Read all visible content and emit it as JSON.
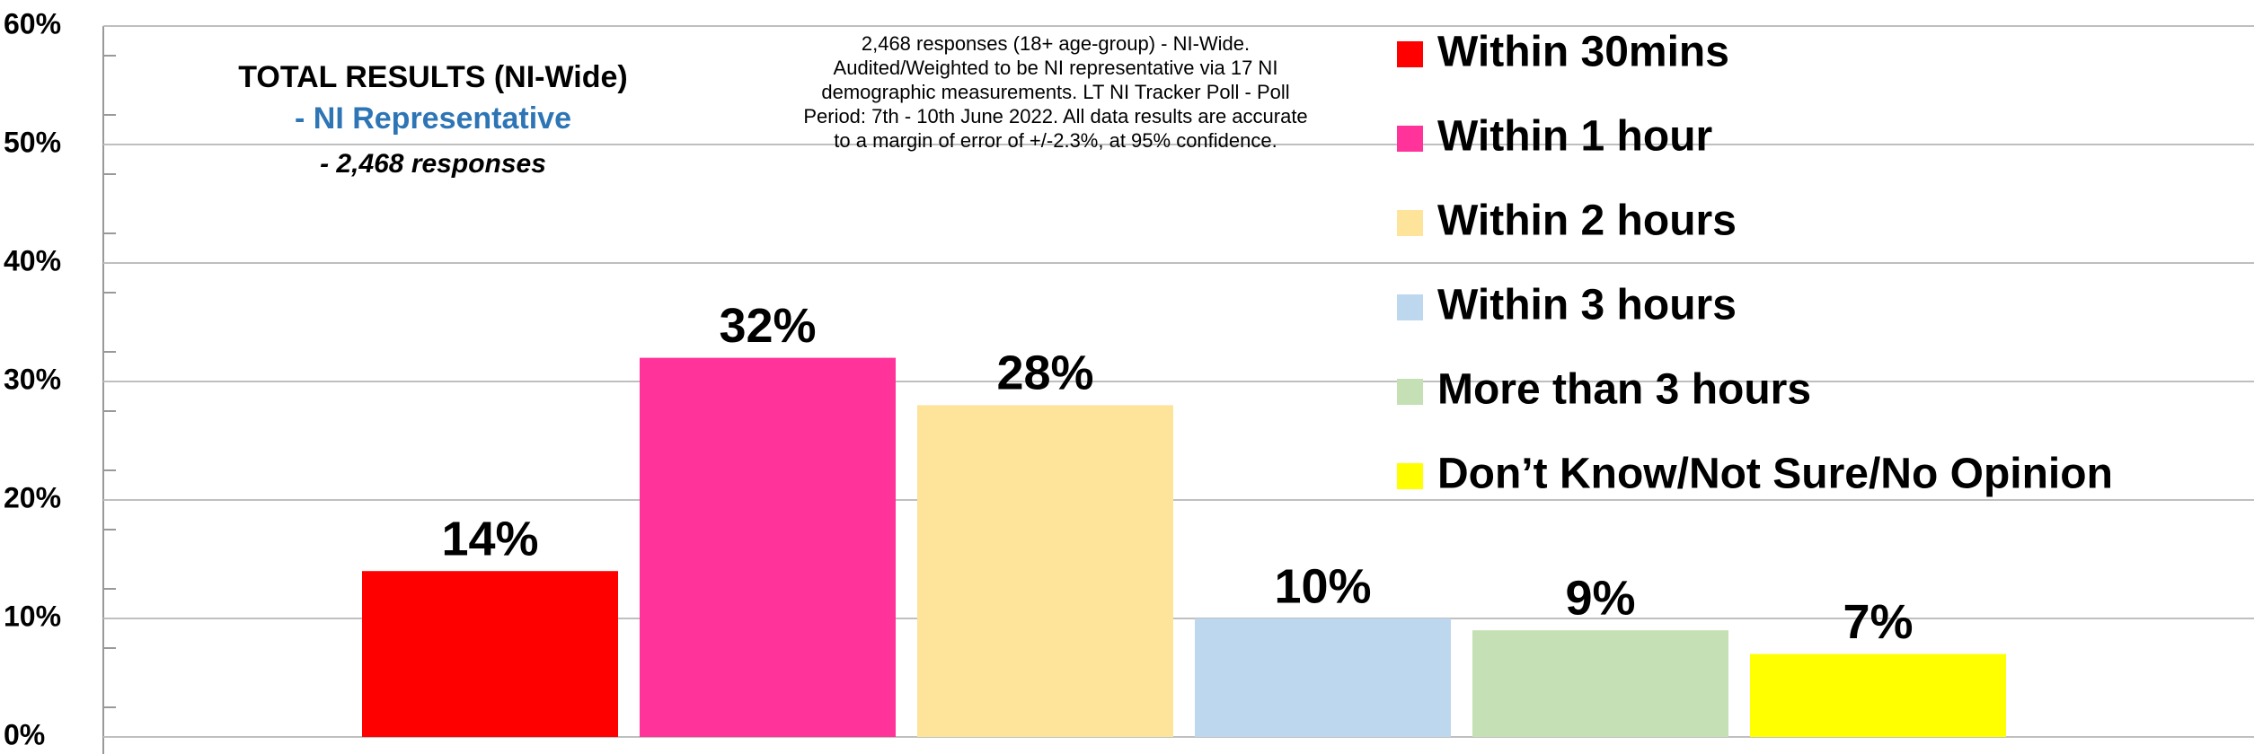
{
  "chart_data": {
    "type": "bar",
    "title": "TOTAL RESULTS (NI-Wide)",
    "subtitle": "- NI Representative",
    "subtitle2": "- 2,468 responses",
    "note": [
      "2,468 responses (18+ age-group) - NI-Wide.",
      "Audited/Weighted to be NI representative via 17 NI",
      "demographic measurements. LT NI Tracker Poll - Poll",
      "Period: 7th - 10th June 2022. All data results are accurate",
      "to a margin of error of +/-2.3%, at 95% confidence."
    ],
    "categories": [
      "Within 30mins",
      "Within 1 hour",
      "Within 2 hours",
      "Within 3 hours",
      "More than 3 hours",
      "Don’t Know/Not Sure/No Opinion"
    ],
    "values": [
      14,
      32,
      28,
      10,
      9,
      7
    ],
    "value_labels": [
      "14%",
      "32%",
      "28%",
      "10%",
      "9%",
      "7%"
    ],
    "colors": [
      "#ff0000",
      "#ff3399",
      "#fde49a",
      "#bdd7ee",
      "#c5e0b4",
      "#ffff00"
    ],
    "ylim": [
      0,
      60
    ],
    "yticks": [
      {
        "value": 0,
        "label": "0%"
      },
      {
        "value": 10,
        "label": "10%"
      },
      {
        "value": 20,
        "label": "20%"
      },
      {
        "value": 30,
        "label": "30%"
      },
      {
        "value": 40,
        "label": "40%"
      },
      {
        "value": 50,
        "label": "50%"
      },
      {
        "value": 60,
        "label": "60%"
      }
    ],
    "grid": true,
    "legend": "right"
  }
}
